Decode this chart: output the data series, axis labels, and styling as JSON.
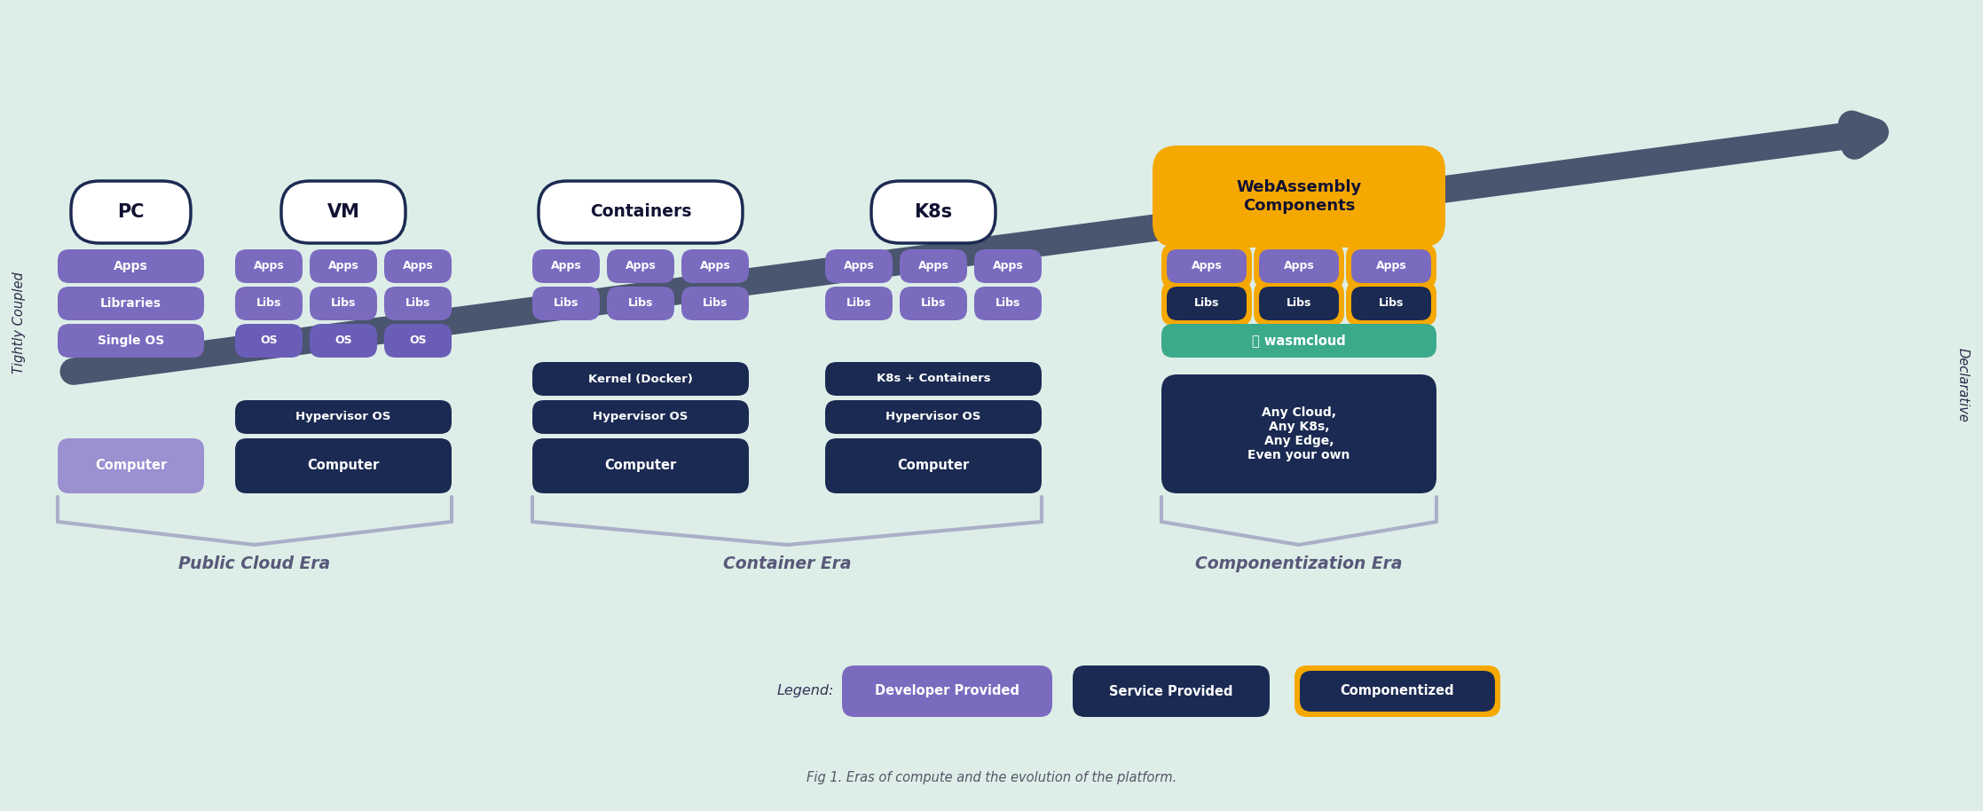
{
  "bg_color": "#ddeee8",
  "purple_light": "#7b6bbf",
  "purple_mid": "#6a5db8",
  "purple_dark": "#1b2a52",
  "purple_computer": "#8878c8",
  "orange_gold": "#f5a800",
  "teal_green": "#3baa8a",
  "white": "#ffffff",
  "navy": "#1b2a52",
  "arrow_color": "#4a5570",
  "gray_brace": "#aab0c8",
  "era_text_color": "#585878",
  "title": "Fig 1. Eras of compute and the evolution of the platform.",
  "label_tightly": "Tightly Coupled",
  "label_declarative": "Declarative",
  "eras": [
    "Public Cloud Era",
    "Container Era",
    "Componentization Era"
  ],
  "legend_label": "Legend:",
  "legend_items": [
    "Developer Provided",
    "Service Provided",
    "Componentized"
  ],
  "legend_fill_colors": [
    "#7b6bbf",
    "#1b2a52",
    "#1b2a52"
  ],
  "legend_border_colors": [
    "#7b6bbf",
    "#1b2a52",
    "#f5a800"
  ]
}
